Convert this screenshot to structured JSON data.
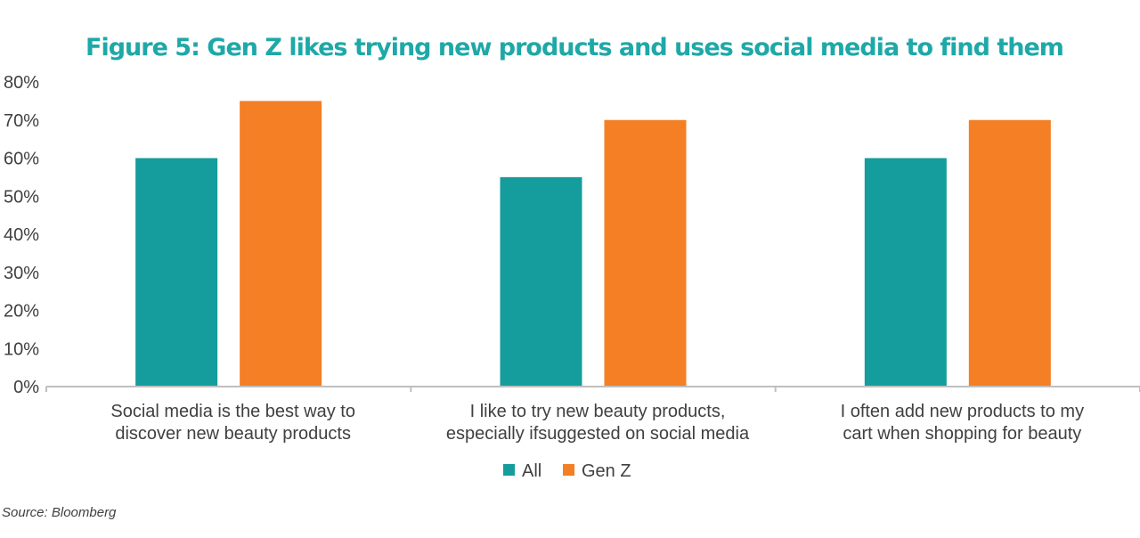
{
  "chart_data": {
    "type": "bar",
    "title": "Figure 5: Gen Z likes trying new products and uses social media to find them",
    "categories": [
      [
        "Social media is the best way to",
        "discover new beauty products"
      ],
      [
        "I like to try new beauty products,",
        "especially ifsuggested on social media"
      ],
      [
        "I often add new products to my",
        "cart when shopping for beauty"
      ]
    ],
    "series": [
      {
        "name": "All",
        "color": "#159c9c",
        "values": [
          60,
          55,
          60
        ]
      },
      {
        "name": "Gen Z",
        "color": "#f47f24",
        "values": [
          75,
          70,
          70
        ]
      }
    ],
    "ylim": [
      0,
      80
    ],
    "yticks": [
      "0%",
      "10%",
      "20%",
      "30%",
      "40%",
      "50%",
      "60%",
      "70%",
      "80%"
    ],
    "grid": false,
    "legend_position": "bottom"
  },
  "source": "Source: Bloomberg"
}
